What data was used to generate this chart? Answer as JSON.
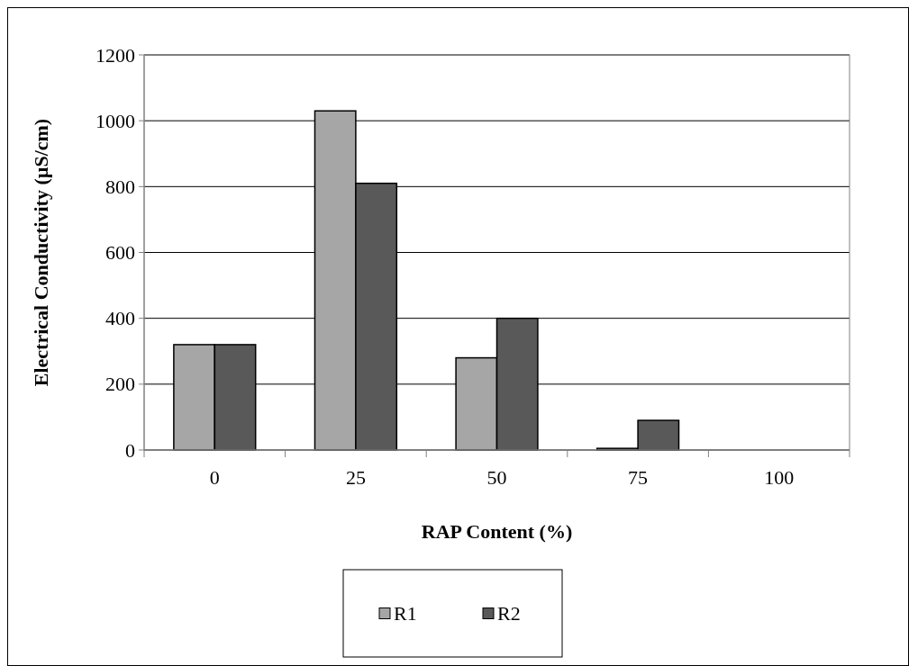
{
  "chart_data": {
    "type": "bar",
    "xlabel": "RAP Content (%)",
    "ylabel": "Electrical Conductivity (µS/cm)",
    "categories": [
      "0",
      "25",
      "50",
      "75",
      "100"
    ],
    "series": [
      {
        "name": "R1",
        "color": "#a6a6a6",
        "values": [
          320,
          1030,
          280,
          5,
          0
        ]
      },
      {
        "name": "R2",
        "color": "#595959",
        "values": [
          320,
          810,
          400,
          90,
          0
        ]
      }
    ],
    "ylim": [
      0,
      1200
    ],
    "yticks": [
      0,
      200,
      400,
      600,
      800,
      1000,
      1200
    ],
    "grid": "y",
    "legend": "bottom"
  }
}
